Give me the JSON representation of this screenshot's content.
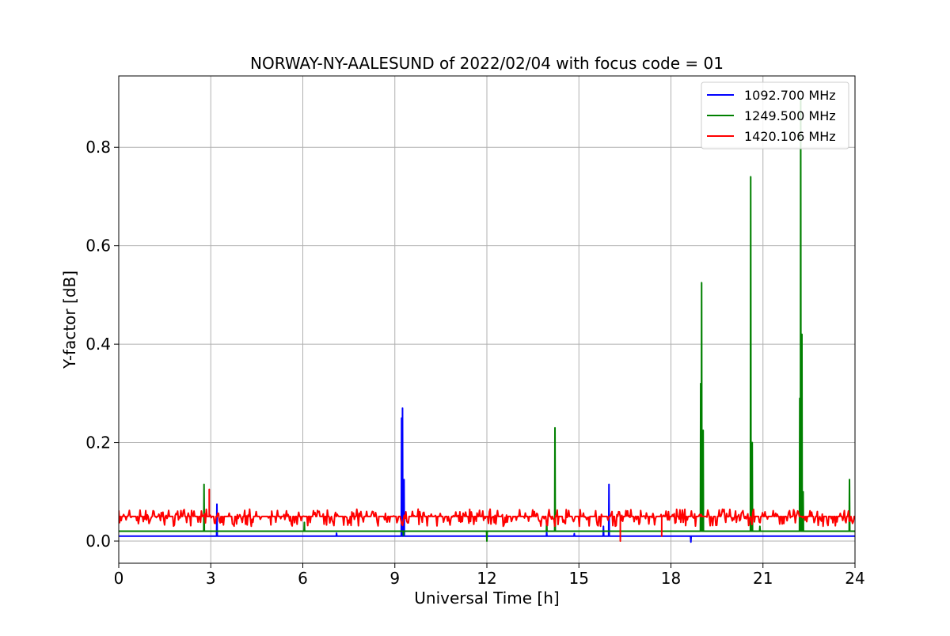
{
  "chart_data": {
    "type": "line",
    "title": "NORWAY-NY-AALESUND of 2022/02/04 with focus code = 01",
    "xlabel": "Universal Time [h]",
    "ylabel": "Y-factor [dB]",
    "xlim": [
      0,
      24
    ],
    "ylim": [
      -0.045,
      0.945
    ],
    "xticks": [
      0,
      3,
      6,
      9,
      12,
      15,
      18,
      21,
      24
    ],
    "yticks": [
      0.0,
      0.2,
      0.4,
      0.6,
      0.8
    ],
    "ytick_labels": [
      "0.0",
      "0.2",
      "0.4",
      "0.6",
      "0.8"
    ],
    "grid": true,
    "legend_position": "top-right",
    "series": [
      {
        "name": "1092.700 MHz",
        "color": "#0000ff",
        "baseline": 0.01,
        "spikes": [
          {
            "x": 3.2,
            "y": 0.075
          },
          {
            "x": 7.1,
            "y": 0.016
          },
          {
            "x": 9.22,
            "y": 0.25
          },
          {
            "x": 9.25,
            "y": 0.27
          },
          {
            "x": 9.3,
            "y": 0.125
          },
          {
            "x": 13.95,
            "y": 0.018
          },
          {
            "x": 14.85,
            "y": 0.015
          },
          {
            "x": 15.8,
            "y": 0.03
          },
          {
            "x": 15.98,
            "y": 0.115
          },
          {
            "x": 18.65,
            "y": -0.002
          }
        ]
      },
      {
        "name": "1249.500 MHz",
        "color": "#008000",
        "baseline": 0.02,
        "spikes": [
          {
            "x": 2.78,
            "y": 0.115
          },
          {
            "x": 6.05,
            "y": 0.038
          },
          {
            "x": 9.28,
            "y": 0.012
          },
          {
            "x": 12.0,
            "y": 0.0
          },
          {
            "x": 13.95,
            "y": 0.04
          },
          {
            "x": 14.22,
            "y": 0.23
          },
          {
            "x": 18.97,
            "y": 0.32
          },
          {
            "x": 19.0,
            "y": 0.525
          },
          {
            "x": 19.05,
            "y": 0.225
          },
          {
            "x": 20.6,
            "y": 0.74
          },
          {
            "x": 20.65,
            "y": 0.2
          },
          {
            "x": 20.9,
            "y": 0.03
          },
          {
            "x": 22.2,
            "y": 0.29
          },
          {
            "x": 22.23,
            "y": 0.9
          },
          {
            "x": 22.27,
            "y": 0.42
          },
          {
            "x": 22.31,
            "y": 0.1
          },
          {
            "x": 23.82,
            "y": 0.125
          }
        ]
      },
      {
        "name": "1420.106 MHz",
        "color": "#ff0000",
        "baseline": 0.05,
        "noise": [
          0.03,
          0.065
        ],
        "spikes": [
          {
            "x": 2.95,
            "y": 0.105
          },
          {
            "x": 16.35,
            "y": 0.0
          },
          {
            "x": 17.7,
            "y": 0.01
          }
        ]
      }
    ]
  }
}
